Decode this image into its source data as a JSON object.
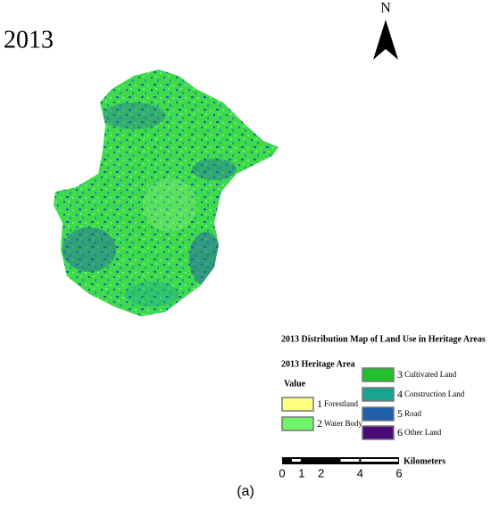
{
  "header": {
    "year": "2013",
    "north": "N"
  },
  "legend": {
    "title": "2013 Distribution Map of Land Use in Heritage Areas",
    "subtitle": "2013 Heritage Area",
    "value_heading": "Value",
    "items": [
      {
        "number": "1",
        "label": "Forestland",
        "color": "#ffff80"
      },
      {
        "number": "2",
        "label": "Water Body",
        "color": "#6ef56a"
      },
      {
        "number": "3",
        "label": "Cultivated Land",
        "color": "#20c12c"
      },
      {
        "number": "4",
        "label": "Construction Land",
        "color": "#1aa490"
      },
      {
        "number": "5",
        "label": "Road",
        "color": "#1f5ea8"
      },
      {
        "number": "6",
        "label": "Other Land",
        "color": "#4a0b78"
      }
    ]
  },
  "scale_bar": {
    "ticks": [
      0,
      1,
      2,
      4,
      6
    ],
    "unit": "Kilometers"
  },
  "caption": "(a)"
}
